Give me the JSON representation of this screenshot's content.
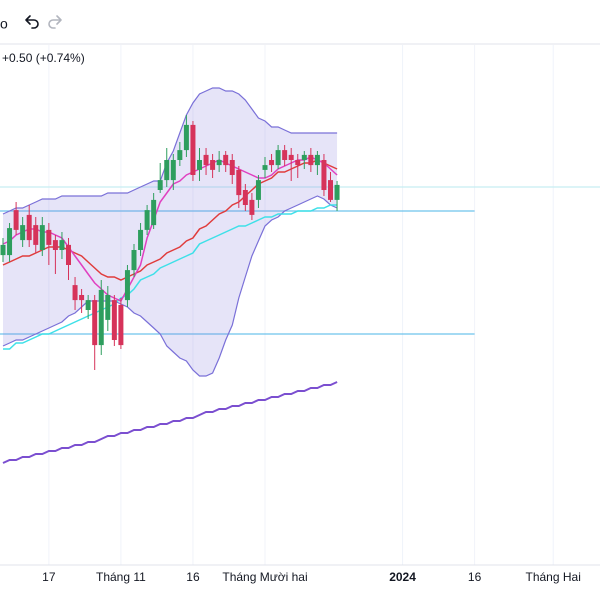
{
  "toolbar": {
    "label": "o"
  },
  "chart_data": {
    "type": "candlestick",
    "change_label": "+0.50 (+0.74%)",
    "change_color": "#2e9e5e",
    "up_color": "#2e9e5e",
    "down_color": "#d6335a",
    "ylim": [
      56,
      74
    ],
    "grid": true,
    "categories": [
      null,
      null,
      null,
      null,
      null,
      null,
      null,
      "17",
      null,
      null,
      null,
      null,
      null,
      null,
      null,
      null,
      null,
      null,
      "Tháng 11",
      null,
      null,
      null,
      null,
      null,
      null,
      null,
      null,
      null,
      null,
      "16",
      null,
      null,
      null,
      null,
      null,
      null,
      null,
      null,
      null,
      null,
      "Tháng Mười hai",
      null,
      null,
      null,
      null,
      null,
      null,
      null,
      null,
      null,
      null,
      null,
      null,
      null,
      null,
      null,
      null,
      null,
      null,
      null,
      null,
      "2024",
      null,
      null,
      null,
      null,
      null,
      null,
      null,
      null,
      null,
      null,
      "16",
      null,
      null,
      null,
      null,
      null,
      null,
      null,
      null,
      null,
      null,
      null,
      "Tháng Hai",
      null,
      null,
      null,
      null,
      null,
      null,
      null
    ],
    "open": [
      66.33,
      66.33,
      67.83,
      66.83,
      67.67,
      67.33,
      66.5,
      67.17,
      66.83,
      66.5,
      66.67,
      65.33,
      65.0,
      64.5,
      64.83,
      63.33,
      64.17,
      64.83,
      64.67,
      64.83,
      65.83,
      66.5,
      67.17,
      67.33,
      68.5,
      68.83,
      68.83,
      69.5,
      69.83,
      70.67,
      69.17,
      69.67,
      69.5,
      69.33,
      69.67,
      69.5,
      69.17,
      68.5,
      68.17,
      68.17,
      69.17,
      69.5,
      69.33,
      69.83,
      69.67,
      69.5,
      69.5,
      69.67,
      69.33,
      69.5,
      68.83,
      68.17,
      null,
      null,
      null,
      null,
      null,
      null,
      null,
      null,
      null,
      null,
      null,
      null,
      null,
      null,
      null,
      null,
      null,
      null,
      null,
      null,
      null,
      null,
      null,
      null,
      null,
      null,
      null,
      null,
      null,
      null,
      null,
      null,
      null,
      null,
      null,
      null,
      null,
      null,
      null,
      null
    ],
    "high": [
      66.9,
      67.4,
      68.1,
      67.6,
      68.0,
      67.6,
      67.6,
      67.4,
      67.0,
      67.1,
      66.9,
      65.6,
      65.2,
      65.0,
      65.0,
      65.5,
      65.3,
      65.0,
      64.9,
      66.0,
      66.7,
      67.4,
      68.0,
      68.4,
      69.4,
      69.9,
      69.7,
      70.1,
      71.0,
      70.8,
      69.9,
      69.9,
      69.7,
      69.8,
      69.8,
      69.7,
      69.3,
      68.7,
      68.4,
      69.0,
      69.6,
      69.7,
      70.0,
      70.0,
      69.9,
      69.7,
      69.8,
      69.9,
      69.8,
      69.7,
      69.1,
      68.8,
      null,
      null,
      null,
      null,
      null,
      null,
      null,
      null,
      null,
      null,
      null,
      null,
      null,
      null,
      null,
      null,
      null,
      null,
      null,
      null,
      null,
      null,
      null,
      null,
      null,
      null,
      null,
      null,
      null,
      null,
      null,
      null,
      null,
      null,
      null,
      null,
      null,
      null,
      null,
      null
    ],
    "low": [
      66.1,
      66.1,
      67.0,
      66.6,
      66.6,
      66.4,
      66.3,
      66.0,
      65.7,
      66.2,
      65.5,
      64.5,
      64.4,
      64.2,
      62.5,
      63.0,
      63.8,
      63.3,
      63.2,
      64.6,
      65.6,
      66.3,
      67.0,
      67.2,
      68.4,
      68.6,
      68.5,
      69.3,
      69.6,
      68.8,
      68.8,
      69.0,
      68.9,
      69.1,
      69.1,
      68.7,
      67.9,
      67.8,
      67.5,
      67.9,
      68.9,
      69.1,
      69.2,
      69.3,
      68.8,
      68.9,
      69.2,
      69.1,
      69.0,
      68.3,
      68.1,
      67.8,
      null,
      null,
      null,
      null,
      null,
      null,
      null,
      null,
      null,
      null,
      null,
      null,
      null,
      null,
      null,
      null,
      null,
      null,
      null,
      null,
      null,
      null,
      null,
      null,
      null,
      null,
      null,
      null,
      null,
      null,
      null,
      null,
      null,
      null,
      null,
      null,
      null,
      null,
      null,
      null
    ],
    "close": [
      66.67,
      67.23,
      67.17,
      67.33,
      66.83,
      66.67,
      67.33,
      66.67,
      66.5,
      66.83,
      66.0,
      64.83,
      64.83,
      64.83,
      63.33,
      65.17,
      65.0,
      63.5,
      63.33,
      65.83,
      66.5,
      67.17,
      67.83,
      68.17,
      68.83,
      69.5,
      69.5,
      69.83,
      70.67,
      69.0,
      69.5,
      69.33,
      69.17,
      69.5,
      69.33,
      69.0,
      68.33,
      68.0,
      67.67,
      68.83,
      69.33,
      69.33,
      69.83,
      69.5,
      69.5,
      69.33,
      69.67,
      69.33,
      69.67,
      68.5,
      68.17,
      68.67,
      null,
      null,
      null,
      null,
      null,
      null,
      null,
      null,
      null,
      null,
      null,
      null,
      null,
      null,
      null,
      null,
      null,
      null,
      null,
      null,
      null,
      null,
      null,
      null,
      null,
      null,
      null,
      null,
      null,
      null,
      null,
      null,
      null,
      null,
      null,
      null,
      null,
      null,
      null,
      null
    ],
    "bands": {
      "fill": "rgba(140,130,225,0.22)",
      "color": "#7a70d8",
      "upper": [
        67.7,
        67.8,
        67.9,
        67.9,
        68.0,
        68.1,
        68.2,
        68.2,
        68.2,
        68.3,
        68.3,
        68.3,
        68.3,
        68.3,
        68.3,
        68.3,
        68.4,
        68.4,
        68.4,
        68.4,
        68.5,
        68.6,
        68.7,
        68.8,
        68.8,
        69.4,
        69.8,
        70.4,
        71.0,
        71.4,
        71.7,
        71.8,
        71.9,
        71.9,
        71.8,
        71.8,
        71.7,
        71.5,
        71.2,
        70.9,
        70.8,
        70.6,
        70.6,
        70.5,
        70.4,
        70.4,
        70.4,
        70.4,
        70.4,
        70.4,
        70.4,
        70.4,
        null,
        null,
        null,
        null,
        null,
        null,
        null,
        null,
        null,
        null,
        null,
        null,
        null,
        null,
        null,
        null,
        null,
        null,
        null,
        null,
        null,
        null,
        null,
        null,
        null,
        null,
        null,
        null,
        null,
        null,
        null,
        null,
        null,
        null,
        null,
        null,
        null,
        null,
        null,
        null
      ],
      "lower": [
        63.3,
        63.4,
        63.5,
        63.5,
        63.6,
        63.7,
        63.8,
        63.9,
        64.0,
        64.1,
        64.3,
        64.4,
        64.6,
        64.8,
        64.8,
        64.8,
        64.8,
        64.8,
        64.7,
        64.6,
        64.4,
        64.3,
        64.1,
        63.9,
        63.7,
        63.3,
        63.1,
        62.9,
        62.8,
        62.5,
        62.3,
        62.3,
        62.4,
        62.9,
        63.5,
        64.0,
        64.9,
        65.6,
        66.3,
        66.8,
        67.3,
        67.5,
        67.6,
        67.8,
        67.9,
        68.0,
        68.1,
        68.2,
        68.3,
        68.2,
        68.0,
        67.9,
        null,
        null,
        null,
        null,
        null,
        null,
        null,
        null,
        null,
        null,
        null,
        null,
        null,
        null,
        null,
        null,
        null,
        null,
        null,
        null,
        null,
        null,
        null,
        null,
        null,
        null,
        null,
        null,
        null,
        null,
        null,
        null,
        null,
        null,
        null,
        null,
        null,
        null,
        null,
        null
      ]
    },
    "series": [
      {
        "color": "#7b4fd0",
        "values": [
          59.4,
          59.5,
          59.5,
          59.6,
          59.6,
          59.7,
          59.7,
          59.8,
          59.8,
          59.9,
          59.9,
          60.0,
          60.0,
          60.1,
          60.1,
          60.2,
          60.3,
          60.3,
          60.4,
          60.4,
          60.5,
          60.5,
          60.6,
          60.6,
          60.7,
          60.7,
          60.8,
          60.8,
          60.9,
          60.9,
          61.0,
          61.1,
          61.1,
          61.2,
          61.2,
          61.3,
          61.3,
          61.4,
          61.4,
          61.5,
          61.5,
          61.6,
          61.6,
          61.7,
          61.7,
          61.8,
          61.8,
          61.9,
          61.9,
          62.0,
          62.0,
          62.1,
          null,
          null,
          null,
          null,
          null,
          null,
          null,
          null,
          null,
          null,
          null,
          null,
          null,
          null,
          null,
          null,
          null,
          null,
          null,
          null,
          null,
          null,
          null,
          null,
          null,
          null,
          null,
          null,
          null,
          null,
          null,
          null,
          null,
          null,
          null,
          null,
          null,
          null,
          null,
          null
        ]
      },
      {
        "color": "#3ee0e8",
        "values": [
          63.2,
          63.2,
          63.4,
          63.4,
          63.5,
          63.6,
          63.7,
          63.7,
          63.8,
          63.9,
          64.0,
          64.1,
          64.2,
          64.3,
          64.4,
          64.5,
          64.6,
          64.7,
          64.9,
          65.0,
          65.2,
          65.5,
          65.6,
          65.7,
          65.9,
          66.0,
          66.1,
          66.2,
          66.3,
          66.4,
          66.7,
          66.8,
          66.9,
          67.0,
          67.1,
          67.2,
          67.3,
          67.3,
          67.4,
          67.5,
          67.6,
          67.6,
          67.7,
          67.7,
          67.7,
          67.8,
          67.8,
          67.8,
          67.9,
          67.9,
          68.0,
          68.0,
          null,
          null,
          null,
          null,
          null,
          null,
          null,
          null,
          null,
          null,
          null,
          null,
          null,
          null,
          null,
          null,
          null,
          null,
          null,
          null,
          null,
          null,
          null,
          null,
          null,
          null,
          null,
          null,
          null,
          null,
          null,
          null,
          null,
          null,
          null,
          null,
          null,
          null,
          null,
          null
        ]
      },
      {
        "color": "#e03c3c",
        "values": [
          66.0,
          66.1,
          66.2,
          66.3,
          66.3,
          66.4,
          66.5,
          66.6,
          66.6,
          66.6,
          66.5,
          66.4,
          66.3,
          66.1,
          65.9,
          65.7,
          65.6,
          65.6,
          65.5,
          65.6,
          65.7,
          65.8,
          66.0,
          66.1,
          66.2,
          66.4,
          66.5,
          66.6,
          66.8,
          66.9,
          67.2,
          67.3,
          67.5,
          67.7,
          67.8,
          68.0,
          68.1,
          68.3,
          68.5,
          68.7,
          68.8,
          68.9,
          69.1,
          69.1,
          69.2,
          69.3,
          69.4,
          69.4,
          69.5,
          69.4,
          69.3,
          69.2,
          null,
          null,
          null,
          null,
          null,
          null,
          null,
          null,
          null,
          null,
          null,
          null,
          null,
          null,
          null,
          null,
          null,
          null,
          null,
          null,
          null,
          null,
          null,
          null,
          null,
          null,
          null,
          null,
          null,
          null,
          null,
          null,
          null,
          null,
          null,
          null,
          null,
          null,
          null,
          null
        ]
      },
      {
        "color": "#e040c0",
        "values": [
          66.7,
          66.8,
          67.0,
          67.1,
          67.2,
          67.2,
          67.1,
          67.1,
          67.0,
          66.9,
          66.6,
          66.3,
          66.0,
          65.7,
          65.4,
          65.2,
          65.0,
          64.9,
          64.8,
          65.2,
          65.6,
          66.0,
          66.9,
          67.5,
          68.1,
          68.4,
          68.7,
          68.8,
          69.0,
          69.1,
          69.2,
          69.3,
          69.4,
          69.5,
          69.4,
          69.3,
          69.2,
          69.1,
          69.0,
          68.9,
          68.9,
          69.0,
          69.2,
          69.3,
          69.4,
          69.5,
          69.5,
          69.6,
          69.5,
          69.4,
          69.2,
          69.0,
          null,
          null,
          null,
          null,
          null,
          null,
          null,
          null,
          null,
          null,
          null,
          null,
          null,
          null,
          null,
          null,
          null,
          null,
          null,
          null,
          null,
          null,
          null,
          null,
          null,
          null,
          null,
          null,
          null,
          null,
          null,
          null,
          null,
          null,
          null,
          null,
          null,
          null,
          null,
          null
        ]
      }
    ],
    "hlines": [
      {
        "value": 67.8,
        "color": "#6ec3ec"
      },
      {
        "value": 63.7,
        "color": "#6ec3ec"
      },
      {
        "value": 68.6,
        "color": "#c6eef2"
      }
    ]
  }
}
